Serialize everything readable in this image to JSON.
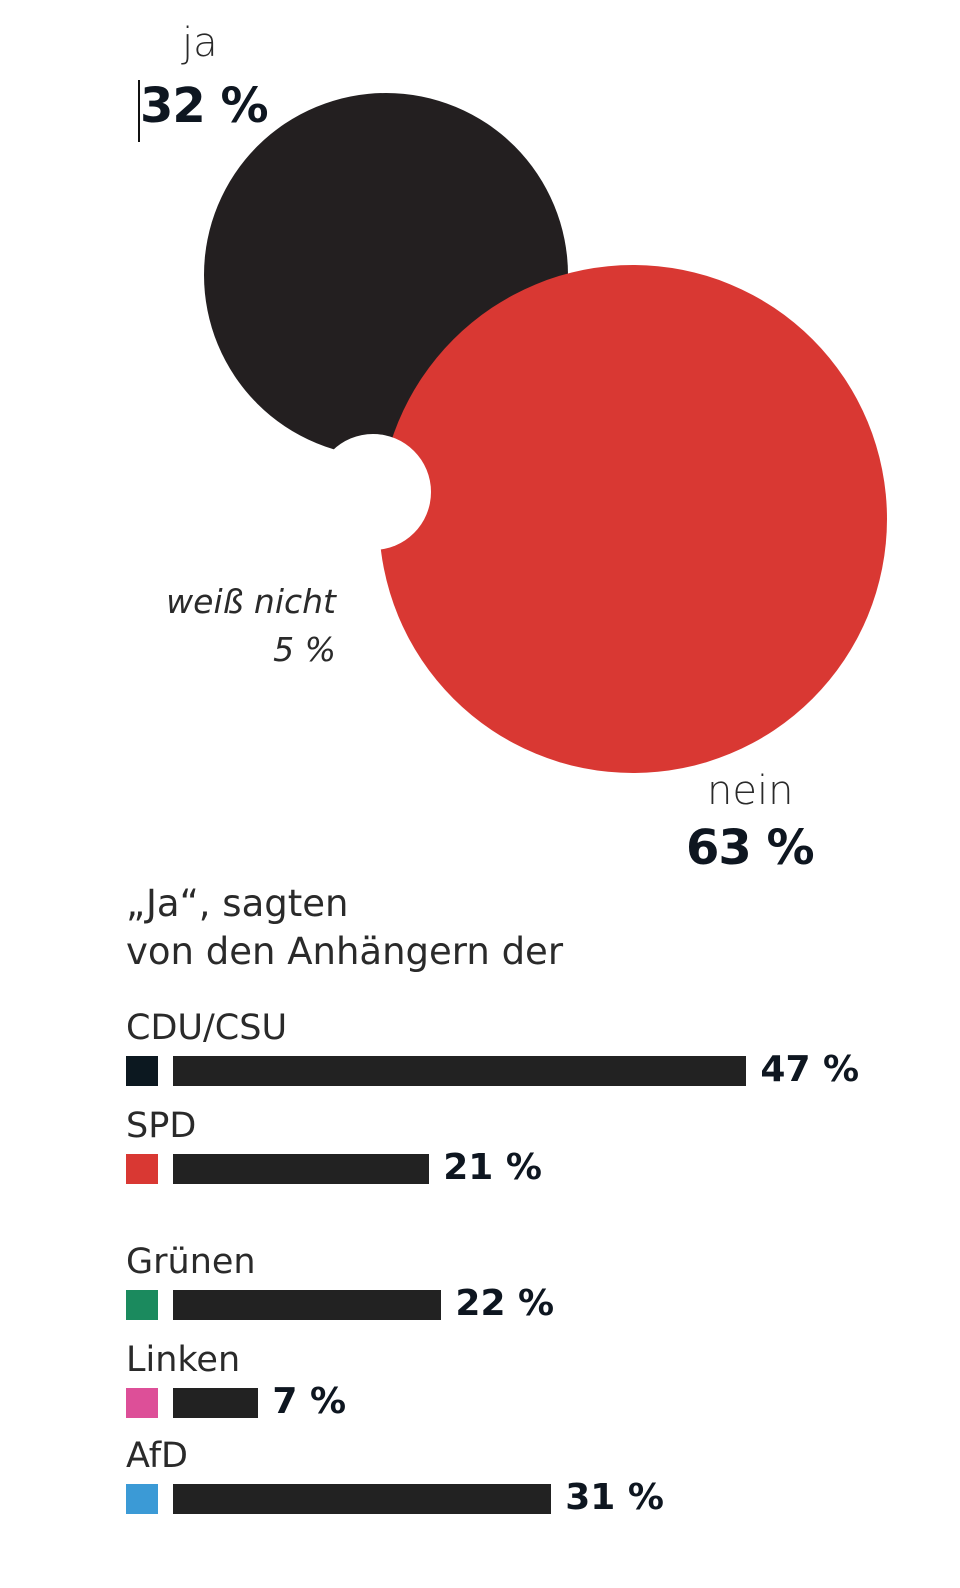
{
  "chart_data": [
    {
      "type": "pie",
      "style": "exploded-circles",
      "slices": [
        {
          "label": "ja",
          "value": 32,
          "value_label": "32 %",
          "color": "#231f20"
        },
        {
          "label": "nein",
          "value": 63,
          "value_label": "63 %",
          "color": "#d93833"
        },
        {
          "label": "weiß nicht",
          "value": 5,
          "value_label": "5 %",
          "color": "#ffffff"
        }
      ]
    },
    {
      "type": "bar",
      "orientation": "horizontal",
      "title_lines": [
        "„Ja“, sagten",
        "von den Anhängern der"
      ],
      "categories": [
        "CDU/CSU",
        "SPD",
        "Grünen",
        "Linken",
        "AfD"
      ],
      "values": [
        47,
        21,
        22,
        7,
        31
      ],
      "value_labels": [
        "47 %",
        "21 %",
        "22 %",
        "7 %",
        "31 %"
      ],
      "swatch_colors": [
        "#0c1820",
        "#d93833",
        "#1b8a5e",
        "#dd4f98",
        "#3b9ad6"
      ],
      "bar_color": "#222222"
    }
  ]
}
